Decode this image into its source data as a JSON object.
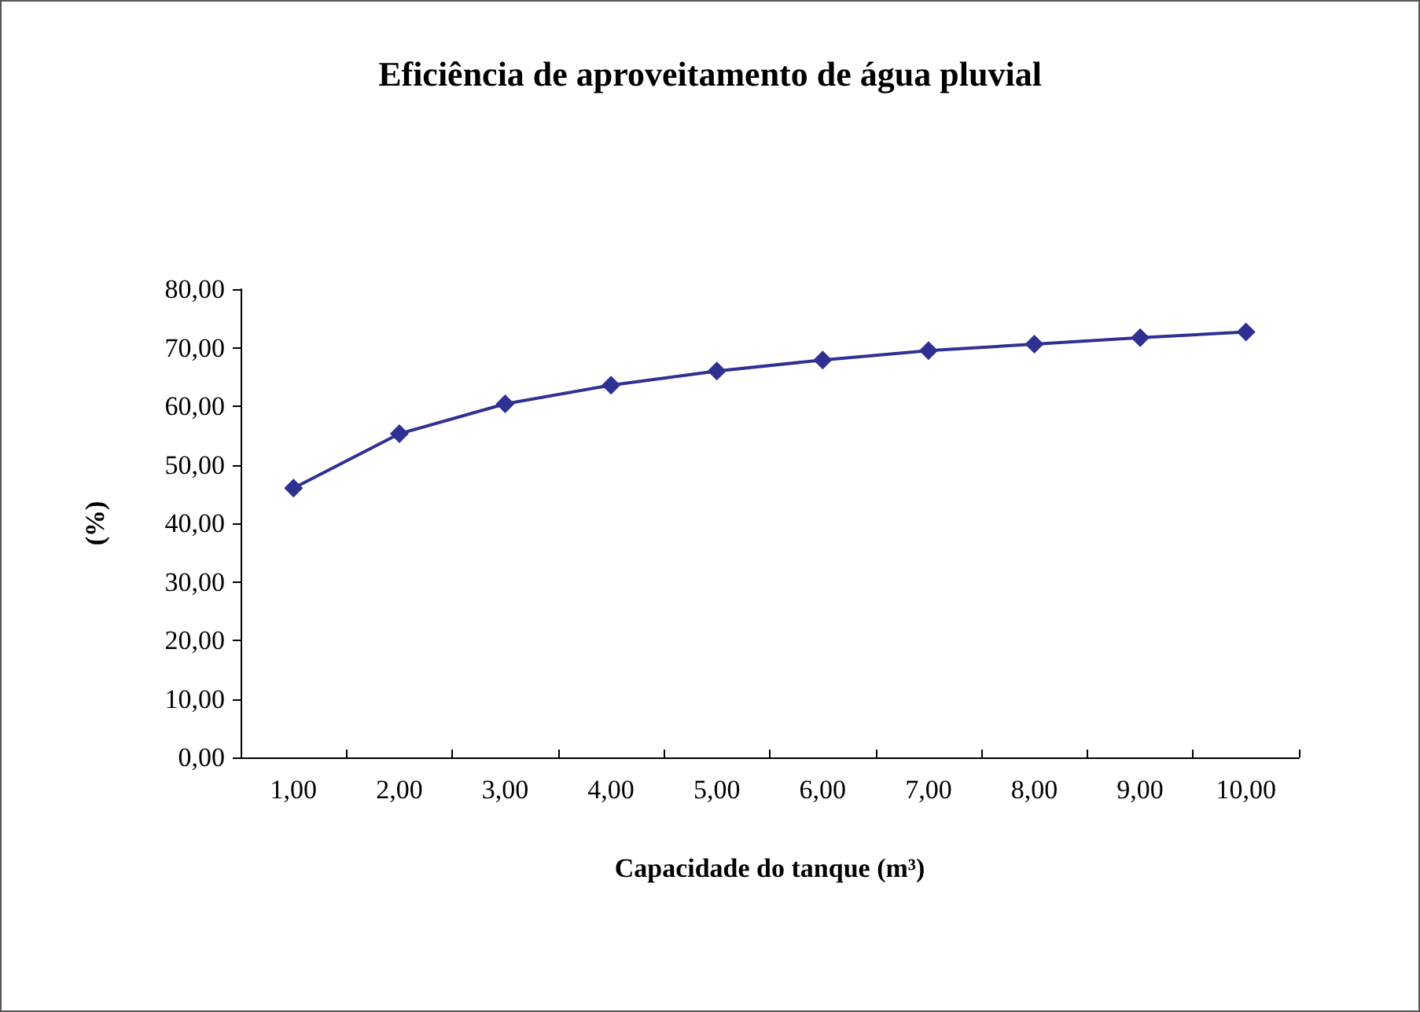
{
  "chart_data": {
    "type": "line",
    "title": "Eficiência de aproveitamento de água pluvial",
    "xlabel": "Capacidade do tanque (m³)",
    "ylabel": "(%)",
    "categories": [
      "1,00",
      "2,00",
      "3,00",
      "4,00",
      "5,00",
      "6,00",
      "7,00",
      "8,00",
      "9,00",
      "10,00"
    ],
    "series": [
      {
        "color": "#2e3192",
        "values": [
          46.0,
          55.3,
          60.4,
          63.6,
          66.0,
          67.9,
          69.5,
          70.6,
          71.7,
          72.7
        ]
      }
    ],
    "ylim": [
      0,
      80
    ],
    "yticks": [
      {
        "value": 0,
        "label": "0,00"
      },
      {
        "value": 10,
        "label": "10,00"
      },
      {
        "value": 20,
        "label": "20,00"
      },
      {
        "value": 30,
        "label": "30,00"
      },
      {
        "value": 40,
        "label": "40,00"
      },
      {
        "value": 50,
        "label": "50,00"
      },
      {
        "value": 60,
        "label": "60,00"
      },
      {
        "value": 70,
        "label": "70,00"
      },
      {
        "value": 80,
        "label": "80,00"
      }
    ],
    "marker": "diamond",
    "line_style": "solid",
    "grid": false
  }
}
